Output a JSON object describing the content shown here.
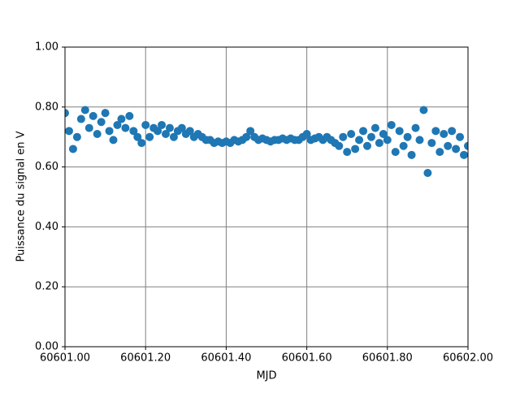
{
  "chart_data": {
    "type": "scatter",
    "xlabel": "MJD",
    "ylabel": "Puissance du signal en V",
    "color": "#1f77b4",
    "grid": true,
    "xlim": [
      60601.0,
      60602.0
    ],
    "xticks": [
      {
        "value": 60601.0,
        "label": "60601.00"
      },
      {
        "value": 60601.2,
        "label": "60601.20"
      },
      {
        "value": 60601.4,
        "label": "60601.40"
      },
      {
        "value": 60601.6,
        "label": "60601.60"
      },
      {
        "value": 60601.8,
        "label": "60601.80"
      },
      {
        "value": 60602.0,
        "label": "60602.00"
      }
    ],
    "ylim": [
      0,
      1
    ],
    "yticks": [
      {
        "value": 0,
        "label": "0.00"
      },
      {
        "value": 0.2,
        "label": "0.20"
      },
      {
        "value": 0.4,
        "label": "0.40"
      },
      {
        "value": 0.6,
        "label": "0.60"
      },
      {
        "value": 0.8,
        "label": "0.80"
      },
      {
        "value": 1,
        "label": "1.00"
      }
    ],
    "x": [
      60601.0,
      60601.01,
      60601.02,
      60601.03,
      60601.04,
      60601.05,
      60601.06,
      60601.07,
      60601.08,
      60601.09,
      60601.1,
      60601.11,
      60601.12,
      60601.13,
      60601.14,
      60601.15,
      60601.16,
      60601.17,
      60601.18,
      60601.19,
      60601.2,
      60601.21,
      60601.22,
      60601.23,
      60601.24,
      60601.25,
      60601.26,
      60601.27,
      60601.28,
      60601.29,
      60601.3,
      60601.31,
      60601.32,
      60601.33,
      60601.34,
      60601.35,
      60601.36,
      60601.37,
      60601.38,
      60601.39,
      60601.4,
      60601.41,
      60601.42,
      60601.43,
      60601.44,
      60601.45,
      60601.46,
      60601.47,
      60601.48,
      60601.49,
      60601.5,
      60601.51,
      60601.52,
      60601.53,
      60601.54,
      60601.55,
      60601.56,
      60601.57,
      60601.58,
      60601.59,
      60601.6,
      60601.61,
      60601.62,
      60601.63,
      60601.64,
      60601.65,
      60601.66,
      60601.67,
      60601.68,
      60601.69,
      60601.7,
      60601.71,
      60601.72,
      60601.73,
      60601.74,
      60601.75,
      60601.76,
      60601.77,
      60601.78,
      60601.79,
      60601.8,
      60601.81,
      60601.82,
      60601.83,
      60601.84,
      60601.85,
      60601.86,
      60601.87,
      60601.88,
      60601.89,
      60601.9,
      60601.91,
      60601.92,
      60601.93,
      60601.94,
      60601.95,
      60601.96,
      60601.97,
      60601.98,
      60601.99,
      60602.0
    ],
    "values": [
      0.78,
      0.72,
      0.66,
      0.7,
      0.76,
      0.79,
      0.73,
      0.77,
      0.71,
      0.75,
      0.78,
      0.72,
      0.69,
      0.74,
      0.76,
      0.73,
      0.77,
      0.72,
      0.7,
      0.68,
      0.74,
      0.7,
      0.73,
      0.72,
      0.74,
      0.71,
      0.73,
      0.7,
      0.72,
      0.73,
      0.71,
      0.72,
      0.7,
      0.71,
      0.7,
      0.69,
      0.69,
      0.68,
      0.685,
      0.68,
      0.685,
      0.68,
      0.69,
      0.685,
      0.69,
      0.7,
      0.72,
      0.7,
      0.69,
      0.695,
      0.69,
      0.685,
      0.69,
      0.69,
      0.695,
      0.69,
      0.695,
      0.69,
      0.69,
      0.7,
      0.71,
      0.69,
      0.695,
      0.7,
      0.69,
      0.7,
      0.69,
      0.68,
      0.67,
      0.7,
      0.65,
      0.71,
      0.66,
      0.69,
      0.72,
      0.67,
      0.7,
      0.73,
      0.68,
      0.71,
      0.69,
      0.74,
      0.65,
      0.72,
      0.67,
      0.7,
      0.64,
      0.73,
      0.69,
      0.79,
      0.58,
      0.68,
      0.72,
      0.65,
      0.71,
      0.67,
      0.72,
      0.66,
      0.7,
      0.64,
      0.67
    ]
  }
}
